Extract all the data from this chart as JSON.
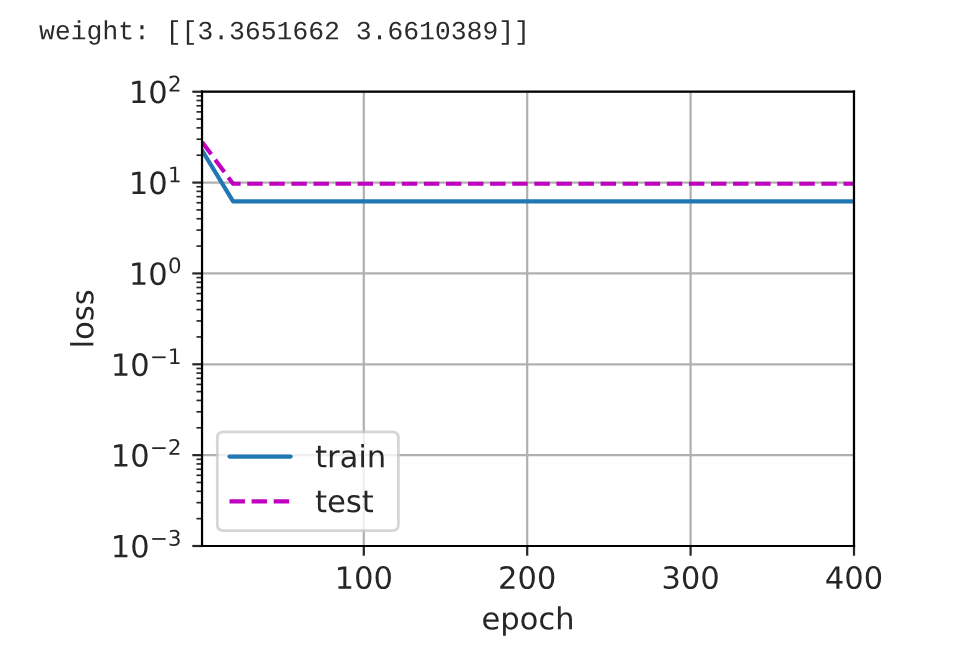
{
  "chart_data": {
    "type": "line",
    "xlabel": "epoch",
    "ylabel": "loss",
    "annotations": [
      "weight: [[3.3651662 3.6610389]]"
    ],
    "x": [
      1,
      20,
      400
    ],
    "series": [
      {
        "name": "train",
        "color": "#1f77b4",
        "values": [
          22.7,
          6.2,
          6.2
        ],
        "line_style": "solid"
      },
      {
        "name": "test",
        "color": "#bf00bf",
        "values": [
          28,
          9.7,
          9.7
        ],
        "line_style": "dashed"
      }
    ],
    "log": "y",
    "xlim": [
      1,
      400
    ],
    "ylim": [
      0.001,
      100
    ],
    "xticks": [
      100,
      200,
      300,
      400
    ],
    "yticks": [
      {
        "value": 0.001,
        "label": "10$^{−3}$"
      },
      {
        "value": 0.01,
        "label": "10$^{−2}$"
      },
      {
        "value": 0.1,
        "label": "10$^{−1}$"
      },
      {
        "value": 1,
        "label": "10$^{0}$"
      },
      {
        "value": 10,
        "label": "10$^{1}$"
      },
      {
        "value": 100,
        "label": "10$^{2}$"
      }
    ],
    "grid": true,
    "legend": "bottom left",
    "marker": "none"
  }
}
